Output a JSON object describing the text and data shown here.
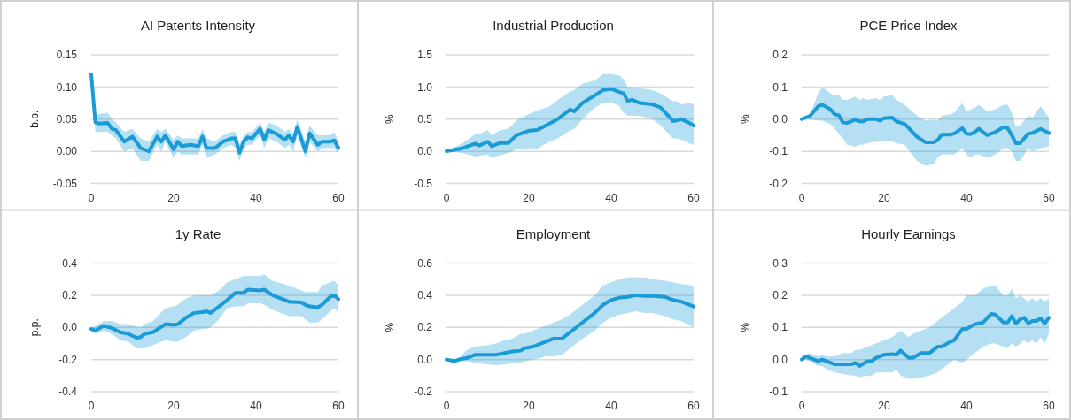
{
  "chart_data": [
    {
      "type": "line",
      "title": "AI Patents Intensity",
      "ylabel": "b.p.",
      "xlim": [
        0,
        60
      ],
      "xticks": [
        0,
        20,
        40,
        60
      ],
      "ylim": [
        -0.05,
        0.15
      ],
      "yticks": [
        {
          "value": -0.05,
          "label": "-0.05"
        },
        {
          "value": 0,
          "label": "0.00"
        },
        {
          "value": 0.05,
          "label": "0.05"
        },
        {
          "value": 0.1,
          "label": "0.10"
        },
        {
          "value": 0.15,
          "label": "0.15"
        }
      ],
      "grid": "y",
      "series": [
        {
          "color": "#1a9ad6",
          "x": [
            0,
            1,
            2,
            4,
            5,
            6,
            8,
            10,
            12,
            14,
            16,
            17,
            18,
            20,
            21,
            22,
            24,
            26,
            27,
            28,
            30,
            32,
            34,
            35,
            36,
            37,
            38,
            39,
            41,
            42,
            43,
            45,
            47,
            48,
            49,
            50,
            52,
            53,
            55,
            56,
            58,
            59,
            60
          ],
          "values": [
            0.12,
            0.045,
            0.043,
            0.044,
            0.035,
            0.033,
            0.015,
            0.023,
            0.005,
            0.0,
            0.023,
            0.015,
            0.025,
            0.003,
            0.015,
            0.008,
            0.01,
            0.008,
            0.023,
            0.005,
            0.005,
            0.015,
            0.02,
            0.02,
            -0.002,
            0.015,
            0.022,
            0.02,
            0.035,
            0.018,
            0.033,
            0.027,
            0.018,
            0.025,
            0.015,
            0.038,
            0.0,
            0.028,
            0.01,
            0.015,
            0.015,
            0.017,
            0.005
          ],
          "lower": [
            0.12,
            0.03,
            0.03,
            0.03,
            0.025,
            0.02,
            0.0,
            0.005,
            -0.015,
            -0.015,
            0.01,
            0.0,
            0.015,
            -0.01,
            0.0,
            -0.005,
            -0.005,
            -0.005,
            0.01,
            -0.01,
            -0.005,
            0.005,
            0.01,
            0.005,
            -0.015,
            0.005,
            0.01,
            0.01,
            0.025,
            0.005,
            0.02,
            0.015,
            0.005,
            0.01,
            0.0,
            0.025,
            -0.01,
            0.015,
            0.0,
            0.005,
            0.005,
            0.005,
            -0.005
          ],
          "upper": [
            0.12,
            0.055,
            0.058,
            0.06,
            0.05,
            0.045,
            0.03,
            0.035,
            0.02,
            0.015,
            0.035,
            0.03,
            0.035,
            0.018,
            0.025,
            0.02,
            0.02,
            0.02,
            0.035,
            0.02,
            0.015,
            0.025,
            0.03,
            0.03,
            0.01,
            0.025,
            0.03,
            0.03,
            0.045,
            0.03,
            0.045,
            0.04,
            0.03,
            0.035,
            0.025,
            0.05,
            0.015,
            0.04,
            0.025,
            0.025,
            0.025,
            0.03,
            0.015
          ]
        }
      ]
    },
    {
      "type": "line",
      "title": "Industrial Production",
      "ylabel": "%",
      "xlim": [
        0,
        60
      ],
      "xticks": [
        0,
        20,
        40,
        60
      ],
      "ylim": [
        -0.5,
        1.5
      ],
      "yticks": [
        {
          "value": -0.5,
          "label": "-0.5"
        },
        {
          "value": 0,
          "label": "0.0"
        },
        {
          "value": 0.5,
          "label": "0.5"
        },
        {
          "value": 1,
          "label": "1.0"
        },
        {
          "value": 1.5,
          "label": "1.5"
        }
      ],
      "grid": "y",
      "series": [
        {
          "color": "#1a9ad6",
          "x": [
            0,
            4,
            7,
            8,
            10,
            11,
            13,
            15,
            17,
            20,
            22,
            25,
            27,
            30,
            31,
            33,
            36,
            38,
            40,
            42,
            43,
            44,
            45,
            47,
            50,
            52,
            55,
            56,
            57,
            59,
            60
          ],
          "values": [
            0.0,
            0.05,
            0.12,
            0.09,
            0.15,
            0.08,
            0.13,
            0.13,
            0.25,
            0.32,
            0.33,
            0.43,
            0.5,
            0.65,
            0.62,
            0.75,
            0.87,
            0.95,
            0.97,
            0.92,
            0.9,
            0.78,
            0.8,
            0.75,
            0.73,
            0.68,
            0.47,
            0.48,
            0.5,
            0.44,
            0.4
          ],
          "lower": [
            0,
            -0.03,
            -0.08,
            -0.07,
            -0.05,
            -0.1,
            -0.06,
            -0.03,
            0.03,
            0.05,
            0.04,
            0.15,
            0.2,
            0.32,
            0.35,
            0.5,
            0.68,
            0.75,
            0.76,
            0.7,
            0.6,
            0.55,
            0.55,
            0.55,
            0.5,
            0.4,
            0.2,
            0.2,
            0.18,
            0.12,
            0.1
          ],
          "upper": [
            0,
            0.13,
            0.27,
            0.27,
            0.33,
            0.25,
            0.33,
            0.35,
            0.48,
            0.58,
            0.63,
            0.7,
            0.8,
            0.93,
            0.95,
            1.05,
            1.1,
            1.2,
            1.2,
            1.18,
            1.12,
            1.0,
            1.0,
            0.98,
            0.95,
            0.9,
            0.78,
            0.78,
            0.73,
            0.75,
            0.73
          ]
        }
      ]
    },
    {
      "type": "line",
      "title": "PCE Price Index",
      "ylabel": "%",
      "xlim": [
        0,
        60
      ],
      "xticks": [
        0,
        20,
        40,
        60
      ],
      "ylim": [
        -0.2,
        0.2
      ],
      "yticks": [
        {
          "value": -0.2,
          "label": "-0.2"
        },
        {
          "value": -0.1,
          "label": "-0.1"
        },
        {
          "value": 0,
          "label": "0.0"
        },
        {
          "value": 0.1,
          "label": "0.1"
        },
        {
          "value": 0.2,
          "label": "0.2"
        }
      ],
      "grid": "y",
      "series": [
        {
          "color": "#1a9ad6",
          "x": [
            0,
            2,
            4,
            5,
            7,
            8,
            9,
            10,
            11,
            13,
            14,
            15,
            16,
            18,
            19,
            20,
            22,
            23,
            25,
            28,
            30,
            32,
            33,
            34,
            36,
            37,
            39,
            40,
            41,
            42,
            43,
            45,
            47,
            49,
            50,
            51,
            52,
            53,
            55,
            56,
            58,
            60
          ],
          "values": [
            0,
            0.01,
            0.04,
            0.045,
            0.03,
            0.015,
            0.012,
            -0.01,
            -0.012,
            -0.002,
            -0.007,
            -0.007,
            0.0,
            0.0,
            -0.005,
            0.003,
            0.005,
            -0.007,
            -0.015,
            -0.055,
            -0.072,
            -0.072,
            -0.065,
            -0.048,
            -0.048,
            -0.045,
            -0.028,
            -0.045,
            -0.047,
            -0.04,
            -0.03,
            -0.05,
            -0.04,
            -0.025,
            -0.028,
            -0.05,
            -0.075,
            -0.075,
            -0.045,
            -0.043,
            -0.03,
            -0.043
          ],
          "lower": [
            0,
            0,
            -0.005,
            -0.005,
            -0.015,
            -0.03,
            -0.045,
            -0.06,
            -0.08,
            -0.085,
            -0.08,
            -0.08,
            -0.075,
            -0.07,
            -0.07,
            -0.065,
            -0.07,
            -0.075,
            -0.08,
            -0.13,
            -0.145,
            -0.14,
            -0.12,
            -0.11,
            -0.11,
            -0.11,
            -0.09,
            -0.11,
            -0.12,
            -0.11,
            -0.11,
            -0.12,
            -0.11,
            -0.09,
            -0.09,
            -0.1,
            -0.13,
            -0.13,
            -0.09,
            -0.1,
            -0.09,
            -0.085
          ],
          "upper": [
            0,
            0.015,
            0.08,
            0.1,
            0.08,
            0.075,
            0.075,
            0.06,
            0.06,
            0.07,
            0.06,
            0.065,
            0.06,
            0.065,
            0.06,
            0.07,
            0.075,
            0.06,
            0.045,
            0.01,
            -0.005,
            -0.002,
            -0.005,
            0.01,
            0.015,
            0.02,
            0.05,
            0.025,
            0.03,
            0.035,
            0.045,
            0.025,
            0.03,
            0.045,
            0.045,
            0.02,
            -0.025,
            -0.02,
            0.01,
            0.005,
            0.04,
            0.005
          ]
        }
      ]
    },
    {
      "type": "line",
      "title": "1y Rate",
      "ylabel": "p.p.",
      "xlim": [
        0,
        60
      ],
      "xticks": [
        0,
        20,
        40,
        60
      ],
      "ylim": [
        -0.4,
        0.4
      ],
      "yticks": [
        {
          "value": -0.4,
          "label": "-0.4"
        },
        {
          "value": -0.2,
          "label": "-0.2"
        },
        {
          "value": 0,
          "label": "0.0"
        },
        {
          "value": 0.2,
          "label": "0.2"
        },
        {
          "value": 0.4,
          "label": "0.4"
        }
      ],
      "grid": "y",
      "series": [
        {
          "color": "#1a9ad6",
          "x": [
            0,
            1,
            3,
            5,
            7,
            9,
            11,
            12,
            13,
            15,
            18,
            20,
            21,
            23,
            25,
            27,
            28,
            29,
            31,
            33,
            35,
            37,
            38,
            41,
            42,
            44,
            48,
            51,
            52,
            53,
            55,
            56,
            58,
            59,
            60
          ],
          "values": [
            -0.01,
            -0.02,
            0.01,
            -0.005,
            -0.03,
            -0.04,
            -0.065,
            -0.06,
            -0.04,
            -0.03,
            0.02,
            0.015,
            0.02,
            0.06,
            0.09,
            0.095,
            0.1,
            0.09,
            0.13,
            0.17,
            0.215,
            0.215,
            0.235,
            0.23,
            0.235,
            0.2,
            0.16,
            0.155,
            0.14,
            0.13,
            0.125,
            0.14,
            0.19,
            0.2,
            0.175
          ],
          "lower": [
            -0.01,
            -0.04,
            -0.02,
            -0.04,
            -0.08,
            -0.09,
            -0.13,
            -0.13,
            -0.13,
            -0.11,
            -0.08,
            -0.09,
            -0.09,
            -0.06,
            -0.02,
            -0.01,
            -0.01,
            0.0,
            0.05,
            0.12,
            0.13,
            0.13,
            0.15,
            0.15,
            0.14,
            0.11,
            0.07,
            0.07,
            0.05,
            0.03,
            0.03,
            0.05,
            0.1,
            0.12,
            0.09
          ],
          "upper": [
            -0.01,
            0.01,
            0.04,
            0.04,
            0.02,
            0.02,
            0.005,
            0.0,
            0.02,
            0.04,
            0.12,
            0.13,
            0.14,
            0.18,
            0.2,
            0.2,
            0.2,
            0.2,
            0.23,
            0.28,
            0.3,
            0.32,
            0.32,
            0.32,
            0.33,
            0.29,
            0.26,
            0.23,
            0.22,
            0.22,
            0.22,
            0.26,
            0.28,
            0.29,
            0.26
          ]
        }
      ]
    },
    {
      "type": "line",
      "title": "Employment",
      "ylabel": "%",
      "xlim": [
        0,
        60
      ],
      "xticks": [
        0,
        20,
        40,
        60
      ],
      "ylim": [
        -0.2,
        0.6
      ],
      "yticks": [
        {
          "value": -0.2,
          "label": "-0.2"
        },
        {
          "value": 0,
          "label": "0.0"
        },
        {
          "value": 0.2,
          "label": "0.2"
        },
        {
          "value": 0.4,
          "label": "0.4"
        },
        {
          "value": 0.6,
          "label": "0.6"
        }
      ],
      "grid": "y",
      "series": [
        {
          "color": "#1a9ad6",
          "x": [
            0,
            2,
            3,
            5,
            7,
            10,
            12,
            14,
            16,
            18,
            19,
            21,
            23,
            24,
            26,
            28,
            30,
            33,
            36,
            38,
            40,
            42,
            44,
            46,
            48,
            50,
            53,
            55,
            57,
            60
          ],
          "values": [
            0,
            -0.01,
            0.0,
            0.01,
            0.03,
            0.03,
            0.03,
            0.04,
            0.05,
            0.055,
            0.07,
            0.08,
            0.1,
            0.11,
            0.13,
            0.13,
            0.17,
            0.23,
            0.29,
            0.34,
            0.37,
            0.385,
            0.39,
            0.4,
            0.395,
            0.395,
            0.39,
            0.37,
            0.36,
            0.33
          ],
          "lower": [
            0,
            -0.01,
            -0.01,
            -0.01,
            -0.02,
            -0.03,
            -0.035,
            -0.03,
            -0.025,
            -0.02,
            -0.01,
            0.0,
            0.01,
            0.02,
            0.02,
            0.03,
            0.07,
            0.13,
            0.18,
            0.23,
            0.26,
            0.28,
            0.29,
            0.3,
            0.29,
            0.29,
            0.27,
            0.25,
            0.24,
            0.2
          ],
          "upper": [
            0,
            -0.005,
            0.01,
            0.06,
            0.08,
            0.09,
            0.1,
            0.12,
            0.13,
            0.16,
            0.16,
            0.18,
            0.2,
            0.21,
            0.23,
            0.25,
            0.28,
            0.34,
            0.4,
            0.46,
            0.48,
            0.5,
            0.51,
            0.51,
            0.51,
            0.5,
            0.49,
            0.48,
            0.47,
            0.46
          ]
        }
      ]
    },
    {
      "type": "line",
      "title": "Hourly Earnings",
      "ylabel": "%",
      "xlim": [
        0,
        60
      ],
      "xticks": [
        0,
        20,
        40,
        60
      ],
      "ylim": [
        -0.1,
        0.3
      ],
      "yticks": [
        {
          "value": -0.1,
          "label": "-0.1"
        },
        {
          "value": 0,
          "label": "0.0"
        },
        {
          "value": 0.1,
          "label": "0.1"
        },
        {
          "value": 0.2,
          "label": "0.2"
        },
        {
          "value": 0.3,
          "label": "0.3"
        }
      ],
      "grid": "y",
      "series": [
        {
          "color": "#1a9ad6",
          "x": [
            0,
            1,
            2,
            4,
            5,
            6,
            8,
            10,
            12,
            13,
            14,
            16,
            17,
            18,
            20,
            22,
            23,
            24,
            26,
            27,
            29,
            31,
            33,
            34,
            36,
            37,
            39,
            40,
            42,
            44,
            46,
            47,
            49,
            50,
            51,
            52,
            53,
            54,
            55,
            56,
            57,
            58,
            59,
            60
          ],
          "values": [
            0,
            0.01,
            0.005,
            -0.005,
            0.0,
            -0.005,
            -0.015,
            -0.015,
            -0.015,
            -0.01,
            -0.02,
            -0.005,
            -0.005,
            0.005,
            0.015,
            0.017,
            0.015,
            0.028,
            0.005,
            0.005,
            0.02,
            0.02,
            0.04,
            0.04,
            0.055,
            0.06,
            0.095,
            0.095,
            0.11,
            0.115,
            0.142,
            0.14,
            0.115,
            0.115,
            0.135,
            0.112,
            0.125,
            0.13,
            0.113,
            0.12,
            0.12,
            0.128,
            0.112,
            0.13
          ],
          "lower": [
            0,
            0,
            -0.005,
            -0.02,
            -0.02,
            -0.03,
            -0.04,
            -0.045,
            -0.05,
            -0.05,
            -0.055,
            -0.05,
            -0.05,
            -0.04,
            -0.04,
            -0.04,
            -0.03,
            -0.05,
            -0.06,
            -0.06,
            -0.055,
            -0.05,
            -0.04,
            -0.03,
            -0.01,
            0.0,
            -0.01,
            0.0,
            0.02,
            0.04,
            0.05,
            0.05,
            0.04,
            0.035,
            0.05,
            0.04,
            0.05,
            0.06,
            0.05,
            0.06,
            0.05,
            0.07,
            0.05,
            0.08
          ],
          "upper": [
            0,
            0.015,
            0.02,
            0.01,
            0.015,
            0.01,
            0.01,
            0.02,
            0.02,
            0.03,
            0.03,
            0.04,
            0.045,
            0.05,
            0.06,
            0.07,
            0.08,
            0.09,
            0.07,
            0.08,
            0.09,
            0.1,
            0.12,
            0.13,
            0.15,
            0.16,
            0.18,
            0.2,
            0.2,
            0.22,
            0.23,
            0.23,
            0.2,
            0.2,
            0.22,
            0.19,
            0.2,
            0.19,
            0.18,
            0.19,
            0.18,
            0.19,
            0.18,
            0.19
          ]
        }
      ]
    }
  ]
}
